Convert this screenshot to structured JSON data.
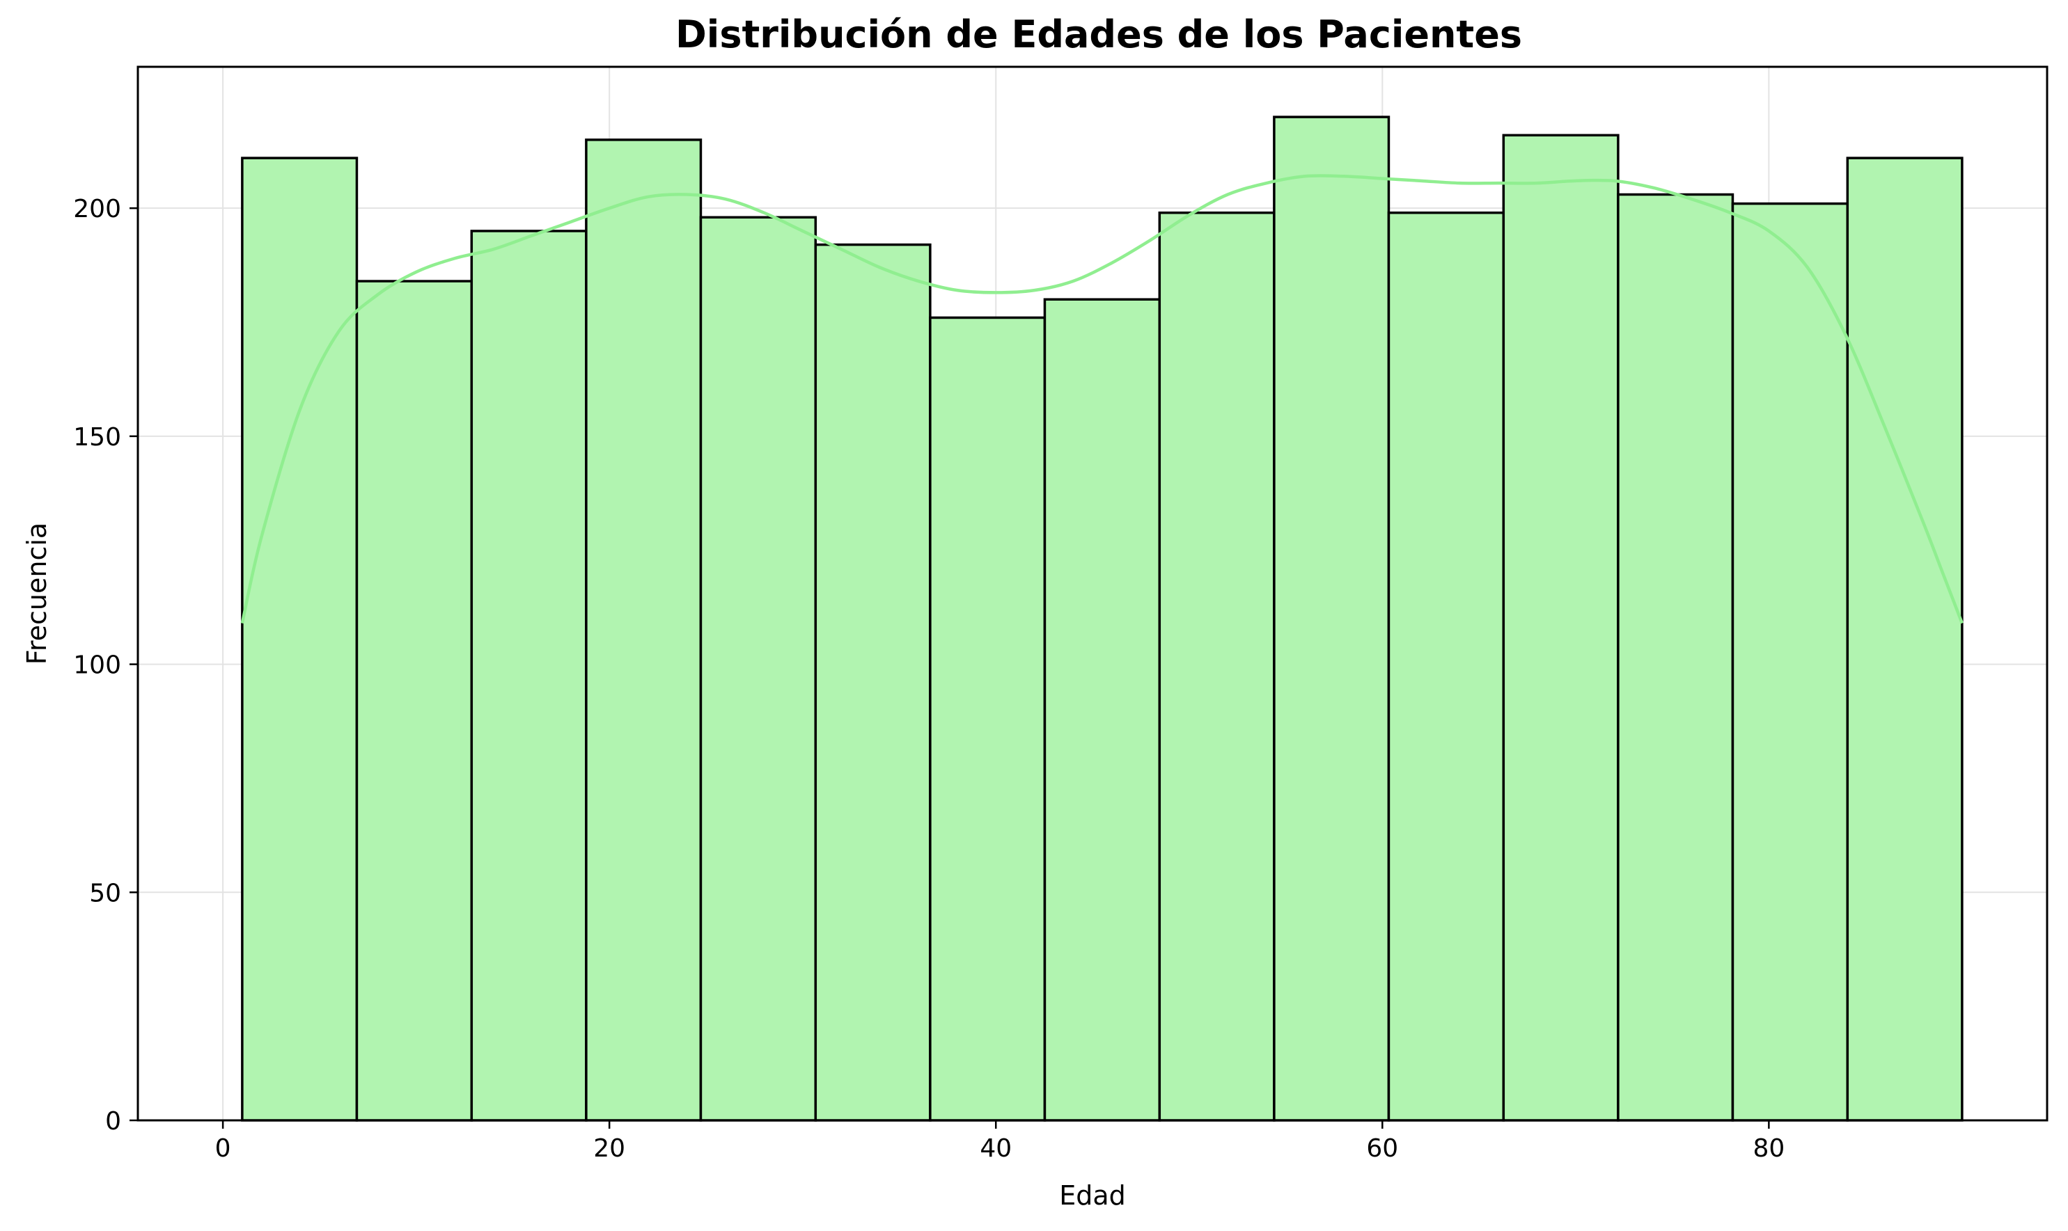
{
  "chart_data": {
    "type": "bar",
    "subtype": "histogram",
    "title": "Distribución de Edades de los Pacientes",
    "xlabel": "Edad",
    "ylabel": "Frecuencia",
    "xlim": [
      -4.4,
      94.4
    ],
    "ylim": [
      0,
      231
    ],
    "xticks": [
      0,
      20,
      40,
      60,
      80
    ],
    "yticks": [
      0,
      50,
      100,
      150,
      200
    ],
    "grid": true,
    "bar_color": "#b1f4b0",
    "bar_edge_color": "#000000",
    "kde_color": "#90ee90",
    "bins": [
      {
        "start": 1.0,
        "end": 6.93,
        "count": 211
      },
      {
        "start": 6.93,
        "end": 12.87,
        "count": 184
      },
      {
        "start": 12.87,
        "end": 18.8,
        "count": 195
      },
      {
        "start": 18.8,
        "end": 24.73,
        "count": 215
      },
      {
        "start": 24.73,
        "end": 30.67,
        "count": 198
      },
      {
        "start": 30.67,
        "end": 36.6,
        "count": 192
      },
      {
        "start": 36.6,
        "end": 42.53,
        "count": 176
      },
      {
        "start": 42.53,
        "end": 48.47,
        "count": 180
      },
      {
        "start": 48.47,
        "end": 54.4,
        "count": 199
      },
      {
        "start": 54.4,
        "end": 60.33,
        "count": 220
      },
      {
        "start": 60.33,
        "end": 66.27,
        "count": 199
      },
      {
        "start": 66.27,
        "end": 72.2,
        "count": 216
      },
      {
        "start": 72.2,
        "end": 78.13,
        "count": 203
      },
      {
        "start": 78.13,
        "end": 84.07,
        "count": 201
      },
      {
        "start": 84.07,
        "end": 90.0,
        "count": 211
      }
    ],
    "kde": {
      "x": [
        1,
        2,
        4,
        6,
        8,
        10,
        12,
        14,
        16,
        18,
        20,
        22,
        24,
        26,
        28,
        30,
        32,
        34,
        36,
        38,
        40,
        42,
        44,
        46,
        48,
        50,
        52,
        54,
        56,
        58,
        60,
        62,
        64,
        66,
        68,
        70,
        72,
        74,
        76,
        78,
        80,
        82,
        84,
        86,
        88,
        89,
        90
      ],
      "y": [
        109,
        128,
        156,
        173,
        181,
        186,
        189,
        191,
        194,
        197,
        200,
        202.5,
        203,
        202,
        199,
        195,
        191,
        187,
        184,
        182,
        181.5,
        182,
        184,
        188,
        193,
        198.5,
        203,
        205.5,
        207,
        207,
        206.5,
        206,
        205.5,
        205.5,
        205.5,
        206,
        206,
        204.5,
        202,
        199,
        195,
        187,
        172,
        152,
        131,
        120,
        109
      ]
    }
  }
}
